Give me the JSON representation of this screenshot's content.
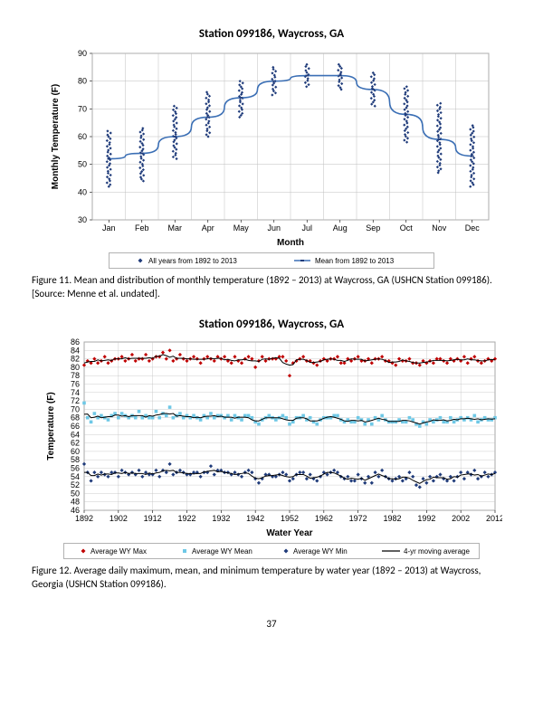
{
  "chart1": {
    "title": "Station 099186, Waycross, GA",
    "xlabel": "Month",
    "ylabel": "Monthly Temperature (F)",
    "ylim": [
      30,
      90
    ],
    "ytick_step": 10,
    "categories": [
      "Jan",
      "Feb",
      "Mar",
      "Apr",
      "May",
      "Jun",
      "Jul",
      "Aug",
      "Sep",
      "Oct",
      "Nov",
      "Dec"
    ],
    "series_points": {
      "label": "All years from 1892 to 2013",
      "color": "#1f3b7a",
      "marker": "diamond",
      "ranges": [
        [
          42,
          62
        ],
        [
          44,
          63
        ],
        [
          52,
          71
        ],
        [
          60,
          76
        ],
        [
          67,
          80
        ],
        [
          75,
          85
        ],
        [
          78,
          86
        ],
        [
          77,
          86
        ],
        [
          71,
          83
        ],
        [
          58,
          78
        ],
        [
          47,
          72
        ],
        [
          42,
          64
        ]
      ]
    },
    "series_line": {
      "label": "Mean from 1892 to 2013",
      "color": "#3b6fb5",
      "marker_color": "#1f3b7a",
      "values": [
        52,
        54,
        60,
        67,
        74,
        80,
        82,
        82,
        77,
        68,
        59,
        53
      ]
    },
    "plot_bg": "#ffffff",
    "grid_color": "#bfbfbf",
    "border_color": "#7f7f7f"
  },
  "chart2": {
    "title": "Station 099186, Waycross, GA",
    "xlabel": "Water Year",
    "ylabel": "Temperature (F)",
    "ylim": [
      46,
      86
    ],
    "ytick_step": 2,
    "xlim": [
      1892,
      2012
    ],
    "xtick_step": 10,
    "plot_bg": "#ffffff",
    "grid_color": "#bfbfbf",
    "border_color": "#7f7f7f",
    "series": [
      {
        "label": "Average WY Max",
        "color": "#c00000",
        "marker": "diamond",
        "values": [
          80.5,
          81.5,
          81,
          82,
          81,
          81.5,
          82.5,
          81,
          81.5,
          82,
          82,
          82.5,
          81.5,
          82,
          83,
          81.5,
          82,
          82,
          83,
          81.5,
          82,
          82.5,
          82.5,
          83.5,
          82,
          84,
          81.5,
          82,
          83,
          82,
          81.5,
          82,
          82.5,
          82,
          81,
          82,
          82.5,
          82,
          81.5,
          82.5,
          82,
          82.5,
          81.5,
          81,
          82.5,
          81.5,
          81,
          82,
          82.5,
          82,
          80,
          81.5,
          82.5,
          81.5,
          82,
          82,
          82,
          82.5,
          82.5,
          81.5,
          78,
          81,
          81.5,
          82,
          82.5,
          81.5,
          81.5,
          81,
          80.5,
          81.5,
          82,
          81.5,
          82,
          82,
          82.5,
          81,
          81,
          82,
          81.5,
          82,
          82.5,
          81.5,
          81.5,
          82,
          81,
          82,
          82,
          82.5,
          81.5,
          81.5,
          81,
          80.5,
          82,
          81.5,
          81.5,
          82,
          81,
          81,
          80.5,
          81.5,
          81,
          81.5,
          81,
          82,
          82,
          81.5,
          81,
          82,
          81.5,
          82,
          81.5,
          82.5,
          81,
          82,
          82.5,
          81.5,
          81,
          81.5,
          82,
          81.5,
          82
        ]
      },
      {
        "label": "Average WY Mean",
        "color": "#6ec8e6",
        "marker": "square",
        "values": [
          71.5,
          68,
          67,
          69,
          68,
          68.5,
          68,
          67.5,
          68.5,
          69,
          68,
          69,
          68.5,
          68,
          68.5,
          68,
          69.5,
          68,
          68.5,
          68,
          68,
          69.5,
          68,
          69,
          68.5,
          70.5,
          68,
          68.5,
          69,
          68,
          68.5,
          68,
          68.5,
          68,
          67.5,
          68.5,
          68,
          69,
          68,
          68.5,
          68.5,
          68,
          68.5,
          67.5,
          68.5,
          68,
          67.5,
          68.5,
          68.5,
          68,
          67,
          66.5,
          67.5,
          68,
          68.5,
          68,
          67.5,
          68,
          68.5,
          68,
          66.5,
          67,
          68,
          68,
          68.5,
          67.5,
          68,
          67,
          66.5,
          67.5,
          68,
          68,
          68,
          68.5,
          68.5,
          67.5,
          67,
          67.5,
          67,
          67,
          68,
          67.5,
          66.5,
          67.5,
          66.5,
          68,
          67.5,
          68.5,
          67.5,
          67,
          67,
          67,
          67.5,
          67,
          67,
          68,
          67.5,
          66.5,
          66,
          67,
          66.5,
          67.5,
          67,
          67.5,
          68,
          67,
          67,
          68,
          67,
          67.5,
          68,
          67.5,
          68,
          67.5,
          68.5,
          67,
          67.5,
          68,
          67.5,
          67.5,
          68
        ]
      },
      {
        "label": "Average WY Min",
        "color": "#1f3b7a",
        "marker": "diamond",
        "values": [
          57,
          55,
          53,
          55,
          54,
          55,
          54.5,
          54,
          55,
          55,
          54,
          55.5,
          55,
          54.5,
          55,
          54.5,
          55.5,
          54,
          55,
          54.5,
          54.5,
          55.5,
          54,
          55.5,
          55,
          57,
          54.5,
          55,
          55.5,
          55,
          54.5,
          54.5,
          55,
          55,
          54,
          55,
          55,
          56.5,
          54.5,
          55.5,
          55.5,
          55,
          55,
          54.5,
          55,
          54.5,
          54,
          55,
          55.5,
          55,
          53.5,
          52.5,
          53.5,
          54.5,
          54.5,
          54,
          54,
          54.5,
          55,
          54.5,
          53,
          53.5,
          54.5,
          55,
          55,
          53.5,
          54.5,
          53.5,
          53,
          54,
          55,
          54.5,
          55,
          55.5,
          55,
          54,
          53.5,
          54,
          53,
          53,
          54.5,
          53.5,
          52.5,
          54,
          52.5,
          55,
          54,
          55.5,
          54,
          53.5,
          53,
          53.5,
          54,
          53,
          53.5,
          55,
          54,
          52,
          51.5,
          53.5,
          52.5,
          54,
          53,
          54,
          54.5,
          53.5,
          53,
          54,
          53,
          54,
          55,
          53.5,
          55,
          54.5,
          55.5,
          53.5,
          54,
          55,
          54,
          54.5,
          55
        ]
      }
    ],
    "moving_avg": {
      "label": "4-yr moving average",
      "color": "#000000"
    }
  },
  "caption1": "Figure 11. Mean and distribution of monthly temperature (1892 – 2013) at Waycross, GA (USHCN Station 099186).  [Source: Menne et al. undated].",
  "caption2": "Figure 12. Average daily maximum, mean, and minimum temperature by water year (1892 – 2013) at Waycross, Georgia (USHCN Station 099186).",
  "page_number": "37"
}
